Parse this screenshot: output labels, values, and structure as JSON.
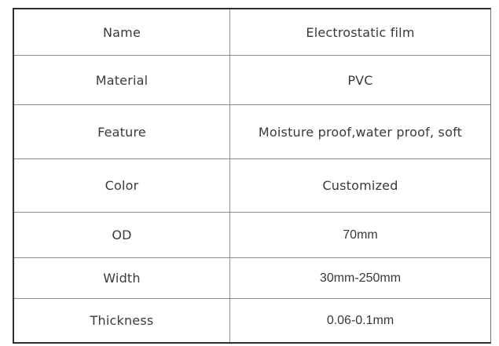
{
  "table": {
    "rows": [
      {
        "label": "Name",
        "value": "Electrostatic film"
      },
      {
        "label": "Material",
        "value": "PVC"
      },
      {
        "label": "Feature",
        "value": "Moisture proof,water proof, soft"
      },
      {
        "label": "Color",
        "value": "Customized"
      },
      {
        "label": "OD",
        "value": "70mm"
      },
      {
        "label": "Width",
        "value": "30mm-250mm"
      },
      {
        "label": "Thickness",
        "value": "0.06-0.1mm"
      }
    ],
    "colors": {
      "outer_border": "#2f2f2f",
      "inner_border": "#8e8e8e",
      "text": "#3a3a3a",
      "background": "#ffffff"
    }
  }
}
